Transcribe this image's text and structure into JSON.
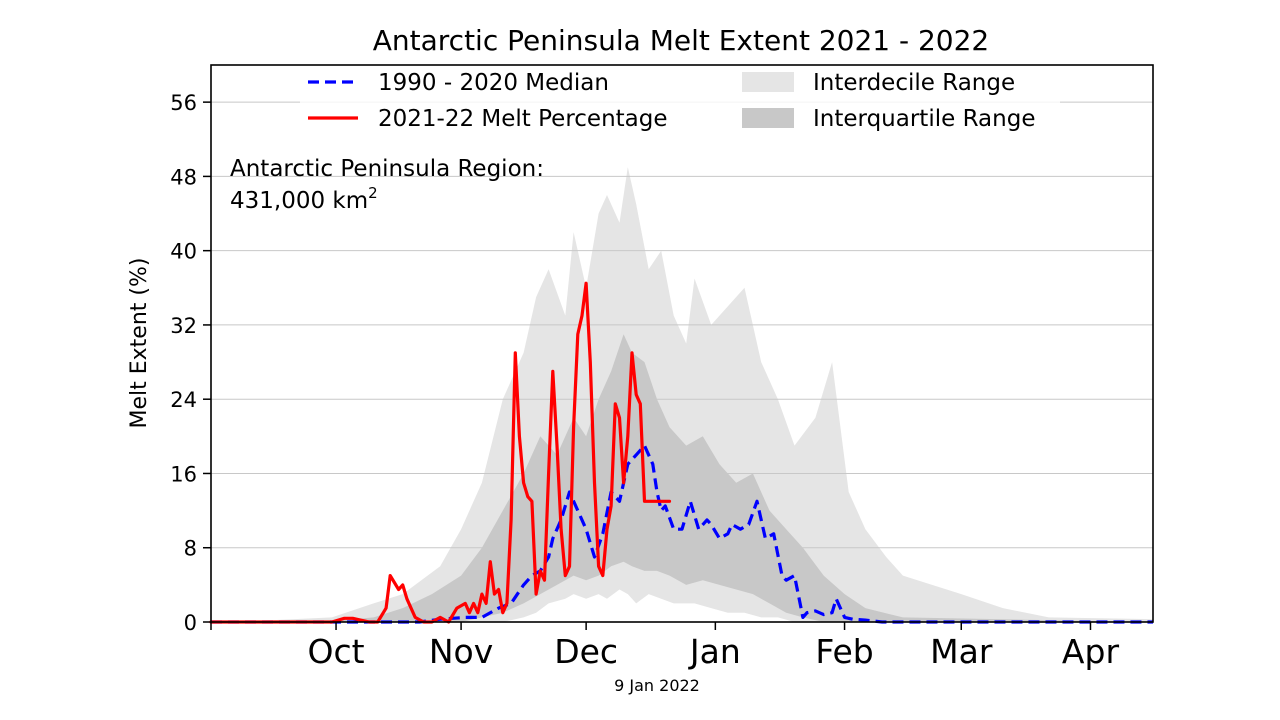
{
  "chart_data": {
    "type": "line",
    "title": "Antarctic Peninsula Melt Extent 2021 - 2022",
    "xlabel": "",
    "ylabel": "Melt Extent (%)",
    "ylim": [
      0,
      60
    ],
    "yticks": [
      0,
      8,
      16,
      24,
      32,
      40,
      48,
      56
    ],
    "xlim": [
      "2021-09-16",
      "2022-04-30"
    ],
    "month_ticks": [
      {
        "label": "Oct",
        "date": "2021-10-16"
      },
      {
        "label": "Nov",
        "date": "2021-11-15"
      },
      {
        "label": "Dec",
        "date": "2021-12-15"
      },
      {
        "label": "Jan",
        "date": "2022-01-15"
      },
      {
        "label": "Feb",
        "date": "2022-02-15"
      },
      {
        "label": "Mar",
        "date": "2022-03-15"
      },
      {
        "label": "Apr",
        "date": "2022-04-15"
      }
    ],
    "boundary_ticks": [
      "2021-09-16",
      "2021-10-16",
      "2021-11-15",
      "2021-12-15",
      "2022-01-15",
      "2022-02-15",
      "2022-03-15",
      "2022-04-15"
    ],
    "grid": "horizontal",
    "legend_position": "top",
    "annotation": {
      "line1": "Antarctic Peninsula Region:",
      "line2": "431,000 km",
      "sup": "2"
    },
    "footer_date": "9 Jan 2022",
    "series": [
      {
        "name": "1990 - 2020 Median",
        "style": "dashed",
        "color": "#0000ff",
        "x": [
          "2021-09-16",
          "2021-10-10",
          "2021-11-05",
          "2021-11-10",
          "2021-11-16",
          "2021-11-20",
          "2021-11-24",
          "2021-11-27",
          "2021-11-30",
          "2021-12-02",
          "2021-12-04",
          "2021-12-06",
          "2021-12-07",
          "2021-12-09",
          "2021-12-11",
          "2021-12-13",
          "2021-12-15",
          "2021-12-17",
          "2021-12-19",
          "2021-12-21",
          "2021-12-23",
          "2021-12-25",
          "2021-12-27",
          "2021-12-29",
          "2021-12-31",
          "2022-01-01",
          "2022-01-02",
          "2022-01-03",
          "2022-01-05",
          "2022-01-07",
          "2022-01-09",
          "2022-01-11",
          "2022-01-13",
          "2022-01-14",
          "2022-01-16",
          "2022-01-18",
          "2022-01-19",
          "2022-01-21",
          "2022-01-23",
          "2022-01-25",
          "2022-01-27",
          "2022-01-29",
          "2022-01-31",
          "2022-02-01",
          "2022-02-03",
          "2022-02-05",
          "2022-02-06",
          "2022-02-08",
          "2022-02-10",
          "2022-02-12",
          "2022-02-13",
          "2022-02-15",
          "2022-02-17",
          "2022-02-20",
          "2022-02-24",
          "2022-03-01",
          "2022-04-30"
        ],
        "values": [
          0,
          0,
          0,
          0.3,
          0.5,
          0.5,
          1.5,
          2.0,
          4.0,
          5.0,
          5.5,
          7.0,
          9.0,
          11.0,
          14.0,
          12.0,
          10.0,
          7.0,
          9.5,
          14.0,
          13.0,
          17.0,
          18.0,
          19.0,
          17.0,
          14.0,
          12.0,
          12.5,
          10.0,
          10.0,
          13.0,
          10.0,
          11.0,
          10.5,
          9.0,
          9.5,
          10.5,
          10.0,
          10.5,
          13.0,
          9.0,
          9.5,
          5.0,
          4.5,
          5.0,
          0.5,
          1.0,
          1.2,
          0.8,
          1.0,
          2.5,
          0.5,
          0.3,
          0.2,
          0,
          0,
          0
        ]
      },
      {
        "name": "2021-22 Melt Percentage",
        "style": "solid",
        "color": "#ff0000",
        "x": [
          "2021-09-16",
          "2021-10-15",
          "2021-10-18",
          "2021-10-20",
          "2021-10-24",
          "2021-10-26",
          "2021-10-28",
          "2021-10-29",
          "2021-10-31",
          "2021-11-01",
          "2021-11-02",
          "2021-11-04",
          "2021-11-06",
          "2021-11-08",
          "2021-11-10",
          "2021-11-12",
          "2021-11-14",
          "2021-11-16",
          "2021-11-17",
          "2021-11-18",
          "2021-11-19",
          "2021-11-20",
          "2021-11-21",
          "2021-11-22",
          "2021-11-23",
          "2021-11-24",
          "2021-11-25",
          "2021-11-26",
          "2021-11-27",
          "2021-11-28",
          "2021-11-29",
          "2021-11-30",
          "2021-12-01",
          "2021-12-02",
          "2021-12-03",
          "2021-12-04",
          "2021-12-05",
          "2021-12-06",
          "2021-12-07",
          "2021-12-08",
          "2021-12-09",
          "2021-12-10",
          "2021-12-11",
          "2021-12-12",
          "2021-12-13",
          "2021-12-14",
          "2021-12-15",
          "2021-12-16",
          "2021-12-17",
          "2021-12-18",
          "2021-12-19",
          "2021-12-20",
          "2021-12-21",
          "2021-12-22",
          "2021-12-23",
          "2021-12-24",
          "2021-12-25",
          "2021-12-26",
          "2021-12-27",
          "2021-12-28",
          "2021-12-29",
          "2021-12-30",
          "2021-12-31",
          "2022-01-01",
          "2022-01-02",
          "2022-01-03",
          "2022-01-04"
        ],
        "values": [
          0,
          0,
          0.4,
          0.4,
          0,
          0,
          1.5,
          5.0,
          3.5,
          4.0,
          2.5,
          0.5,
          0,
          0,
          0.5,
          0,
          1.5,
          2.0,
          1.0,
          2.0,
          1.0,
          3.0,
          2.0,
          6.5,
          3.0,
          3.5,
          1.0,
          2.0,
          11.0,
          29.0,
          20.0,
          15.0,
          13.5,
          13.0,
          3.0,
          5.5,
          4.5,
          16.0,
          27.0,
          19.0,
          10.0,
          5.0,
          6.0,
          21.0,
          31.0,
          33.0,
          36.5,
          28.0,
          15.0,
          6.0,
          5.0,
          10.0,
          12.5,
          23.5,
          22.0,
          15.0,
          20.0,
          29.0,
          24.5,
          23.5,
          13.0,
          13.0,
          13.0,
          13.0,
          13.0,
          13.0,
          13.0
        ]
      }
    ],
    "bands": [
      {
        "name": "Interdecile Range",
        "color": "#e5e5e5",
        "x": [
          "2021-09-16",
          "2021-10-01",
          "2021-10-15",
          "2021-10-25",
          "2021-11-01",
          "2021-11-10",
          "2021-11-15",
          "2021-11-20",
          "2021-11-25",
          "2021-11-30",
          "2021-12-03",
          "2021-12-06",
          "2021-12-10",
          "2021-12-12",
          "2021-12-15",
          "2021-12-18",
          "2021-12-20",
          "2021-12-23",
          "2021-12-25",
          "2021-12-27",
          "2021-12-30",
          "2022-01-02",
          "2022-01-05",
          "2022-01-08",
          "2022-01-10",
          "2022-01-14",
          "2022-01-18",
          "2022-01-22",
          "2022-01-26",
          "2022-01-30",
          "2022-02-03",
          "2022-02-08",
          "2022-02-12",
          "2022-02-16",
          "2022-02-20",
          "2022-02-25",
          "2022-03-01",
          "2022-03-08",
          "2022-03-15",
          "2022-03-25",
          "2022-04-05",
          "2022-04-30"
        ],
        "lower": [
          0,
          0,
          0,
          0,
          0,
          0,
          0,
          0,
          0,
          0.5,
          1.0,
          2.0,
          2.5,
          3.0,
          2.5,
          3.0,
          2.5,
          3.5,
          3.0,
          2.0,
          3.0,
          2.5,
          2.0,
          2.0,
          2.0,
          1.5,
          1.0,
          1.0,
          0.5,
          0.5,
          0,
          0,
          0,
          0,
          0,
          0,
          0,
          0,
          0,
          0,
          0,
          0
        ],
        "upper": [
          0,
          0.2,
          0.5,
          2.0,
          3.0,
          6.0,
          10.0,
          15.0,
          24.0,
          29.0,
          35.0,
          38.0,
          33.0,
          42.0,
          36.0,
          44.0,
          46.0,
          43.0,
          49.0,
          45.0,
          38.0,
          40.0,
          33.0,
          30.0,
          37.0,
          32.0,
          34.0,
          36.0,
          28.0,
          24.0,
          19.0,
          22.0,
          28.0,
          14.0,
          10.0,
          7.0,
          5.0,
          4.0,
          3.0,
          1.5,
          0.5,
          0.3
        ]
      },
      {
        "name": "Interquartile Range",
        "color": "#c8c8c8",
        "x": [
          "2021-09-16",
          "2021-10-15",
          "2021-10-25",
          "2021-11-01",
          "2021-11-08",
          "2021-11-15",
          "2021-11-20",
          "2021-11-25",
          "2021-11-30",
          "2021-12-04",
          "2021-12-08",
          "2021-12-12",
          "2021-12-15",
          "2021-12-18",
          "2021-12-21",
          "2021-12-24",
          "2021-12-26",
          "2021-12-29",
          "2022-01-01",
          "2022-01-04",
          "2022-01-08",
          "2022-01-12",
          "2022-01-16",
          "2022-01-20",
          "2022-01-24",
          "2022-01-28",
          "2022-02-01",
          "2022-02-05",
          "2022-02-10",
          "2022-02-15",
          "2022-02-20",
          "2022-03-01",
          "2022-04-30"
        ],
        "lower": [
          0,
          0,
          0,
          0,
          0,
          0,
          0.5,
          1.0,
          2.0,
          3.0,
          4.0,
          5.0,
          4.5,
          5.0,
          6.0,
          6.5,
          6.0,
          5.5,
          5.5,
          5.0,
          4.0,
          4.5,
          4.0,
          3.5,
          3.0,
          2.0,
          1.0,
          0.5,
          0,
          0,
          0,
          0,
          0
        ],
        "upper": [
          0,
          0.1,
          0.5,
          1.5,
          3.0,
          5.0,
          8.0,
          12.0,
          16.0,
          20.0,
          18.0,
          22.0,
          20.0,
          24.0,
          27.0,
          31.0,
          29.0,
          28.0,
          24.0,
          21.0,
          19.0,
          20.0,
          17.0,
          15.0,
          16.0,
          12.0,
          10.0,
          8.0,
          5.0,
          3.0,
          1.5,
          0.5,
          0
        ]
      }
    ]
  }
}
